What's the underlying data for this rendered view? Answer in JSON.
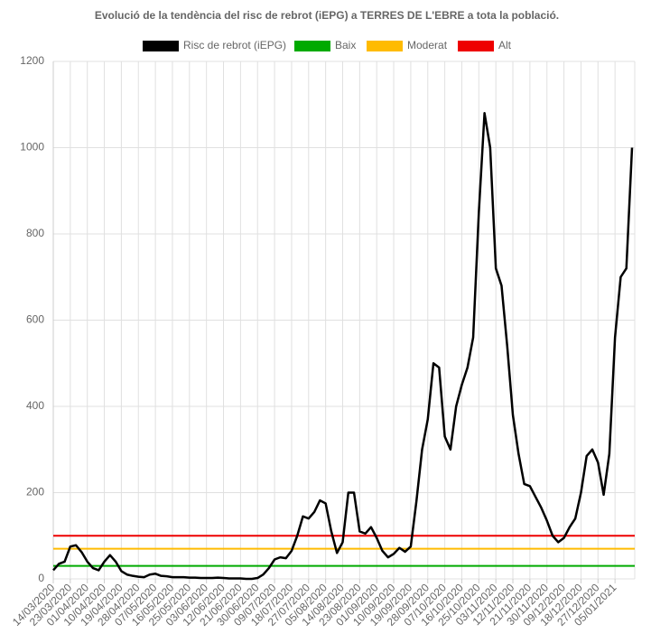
{
  "chart_data": {
    "type": "line",
    "title": "Evolució de la tendència del risc de rebrot (iEPG) a TERRES DE L'EBRE a tota la població.",
    "categories": [
      "14/03/2020",
      null,
      null,
      "23/03/2020",
      null,
      null,
      "01/04/2020",
      null,
      null,
      "10/04/2020",
      null,
      null,
      "19/04/2020",
      null,
      null,
      "28/04/2020",
      null,
      null,
      "07/05/2020",
      null,
      null,
      "16/05/2020",
      null,
      null,
      "25/05/2020",
      null,
      null,
      "03/06/2020",
      null,
      null,
      "12/06/2020",
      null,
      null,
      "21/06/2020",
      null,
      null,
      "30/06/2020",
      null,
      null,
      "09/07/2020",
      null,
      null,
      "18/07/2020",
      null,
      null,
      "27/07/2020",
      null,
      null,
      "05/08/2020",
      null,
      null,
      "14/08/2020",
      null,
      null,
      "23/08/2020",
      null,
      null,
      "01/09/2020",
      null,
      null,
      "10/09/2020",
      null,
      null,
      "19/09/2020",
      null,
      null,
      "28/09/2020",
      null,
      null,
      "07/10/2020",
      null,
      null,
      "16/10/2020",
      null,
      null,
      "25/10/2020",
      null,
      null,
      "03/11/2020",
      null,
      null,
      "12/11/2020",
      null,
      null,
      "21/11/2020",
      null,
      null,
      "30/11/2020",
      null,
      null,
      "09/12/2020",
      null,
      null,
      "18/12/2020",
      null,
      null,
      "27/12/2020",
      null,
      null,
      "05/01/2021",
      null,
      null,
      null
    ],
    "series": [
      {
        "name": "Risc de rebrot (iEPG)",
        "color": "#000000",
        "values": [
          20,
          35,
          40,
          75,
          78,
          62,
          40,
          25,
          20,
          40,
          55,
          40,
          18,
          10,
          7,
          5,
          4,
          10,
          12,
          7,
          6,
          4,
          4,
          4,
          3,
          3,
          2,
          2,
          2,
          3,
          2,
          1,
          1,
          1,
          0,
          0,
          2,
          10,
          25,
          45,
          50,
          48,
          65,
          100,
          145,
          140,
          155,
          182,
          175,
          110,
          60,
          85,
          200,
          200,
          110,
          105,
          120,
          95,
          65,
          50,
          58,
          72,
          63,
          75,
          180,
          300,
          370,
          500,
          490,
          330,
          300,
          400,
          450,
          490,
          560,
          850,
          1080,
          1000,
          720,
          680,
          540,
          380,
          290,
          220,
          215,
          190,
          165,
          135,
          100,
          85,
          95,
          120,
          140,
          200,
          285,
          300,
          270,
          195,
          290,
          560,
          700,
          720,
          1000
        ]
      }
    ],
    "thresholds": [
      {
        "name": "Baix",
        "color": "#00aa00",
        "value": 30
      },
      {
        "name": "Moderat",
        "color": "#ffbb00",
        "value": 70
      },
      {
        "name": "Alt",
        "color": "#ee0000",
        "value": 100
      }
    ],
    "ylim": [
      0,
      1200
    ],
    "yticks": [
      0,
      200,
      400,
      600,
      800,
      1000,
      1200
    ],
    "grid": true
  }
}
